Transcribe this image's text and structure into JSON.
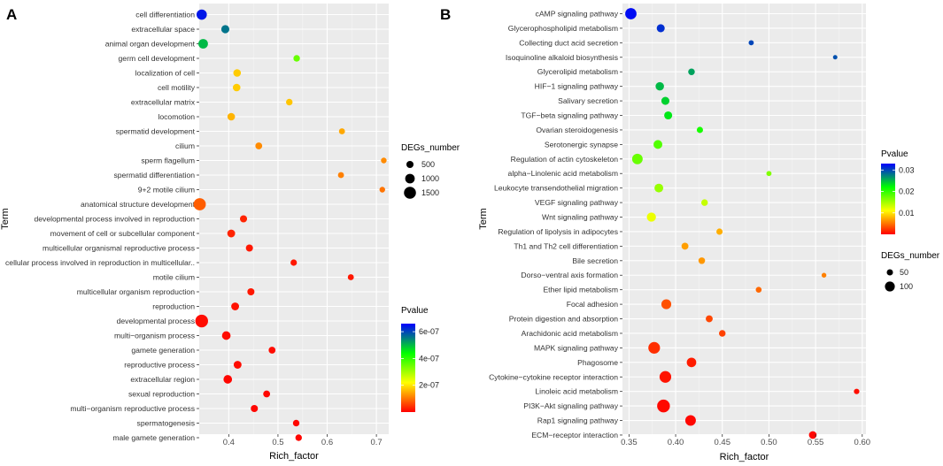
{
  "figure": {
    "panels": [
      {
        "letter": "A"
      },
      {
        "letter": "B"
      }
    ]
  },
  "chart_data": [
    {
      "panel": "A",
      "type": "scatter",
      "xlabel": "Rich_factor",
      "ylabel": "Term",
      "xlim": [
        0.34,
        0.725
      ],
      "xticks": [
        0.4,
        0.5,
        0.6,
        0.7
      ],
      "xtick_labels": [
        "0.4",
        "0.5",
        "0.6",
        "0.7"
      ],
      "grid": true,
      "color_legend": {
        "title": "Pvalue",
        "range": [
          0,
          6.6e-07
        ],
        "ticks": [
          2e-07,
          4e-07,
          6e-07
        ],
        "tick_labels": [
          "2e-07",
          "4e-07",
          "6e-07"
        ],
        "colors": [
          "#ff0000",
          "#ffff00",
          "#00ff00",
          "#0000ff"
        ]
      },
      "size_legend": {
        "title": "DEGs_number",
        "values": [
          500,
          1000,
          1500
        ],
        "labels": [
          "500",
          "1000",
          "1500"
        ]
      },
      "points": [
        {
          "term": "cell differentiation",
          "rich_factor": 0.345,
          "degs": 1150,
          "pvalue": 6.4e-07
        },
        {
          "term": "extracellular space",
          "rich_factor": 0.393,
          "degs": 700,
          "pvalue": 5.6e-07
        },
        {
          "term": "animal organ development",
          "rich_factor": 0.348,
          "degs": 1000,
          "pvalue": 5e-07
        },
        {
          "term": "germ cell development",
          "rich_factor": 0.538,
          "degs": 380,
          "pvalue": 3.5e-07
        },
        {
          "term": "localization of cell",
          "rich_factor": 0.417,
          "degs": 600,
          "pvalue": 1.75e-07
        },
        {
          "term": "cell motility",
          "rich_factor": 0.416,
          "degs": 600,
          "pvalue": 1.75e-07
        },
        {
          "term": "extracellular matrix",
          "rich_factor": 0.523,
          "degs": 380,
          "pvalue": 1.7e-07
        },
        {
          "term": "locomotion",
          "rich_factor": 0.405,
          "degs": 600,
          "pvalue": 1.55e-07
        },
        {
          "term": "spermatid development",
          "rich_factor": 0.63,
          "degs": 280,
          "pvalue": 1.45e-07
        },
        {
          "term": "cilium",
          "rich_factor": 0.461,
          "degs": 450,
          "pvalue": 1.2e-07
        },
        {
          "term": "sperm flagellum",
          "rich_factor": 0.715,
          "degs": 200,
          "pvalue": 1.2e-07
        },
        {
          "term": "spermatid differentiation",
          "rich_factor": 0.628,
          "degs": 280,
          "pvalue": 1.1e-07
        },
        {
          "term": "9+2 motile cilium",
          "rich_factor": 0.712,
          "degs": 200,
          "pvalue": 1e-07
        },
        {
          "term": "anatomical structure development",
          "rich_factor": 0.341,
          "degs": 1550,
          "pvalue": 8e-08
        },
        {
          "term": "developmental process involved in reproduction",
          "rich_factor": 0.43,
          "degs": 500,
          "pvalue": 3e-08
        },
        {
          "term": "movement of cell or subcellular component",
          "rich_factor": 0.405,
          "degs": 650,
          "pvalue": 3e-08
        },
        {
          "term": "multicellular organismal reproductive process",
          "rich_factor": 0.442,
          "degs": 500,
          "pvalue": 2e-08
        },
        {
          "term": "cellular process involved in reproduction in multicellular..",
          "rich_factor": 0.532,
          "degs": 350,
          "pvalue": 2e-08
        },
        {
          "term": "motile cilium",
          "rich_factor": 0.648,
          "degs": 280,
          "pvalue": 2e-08
        },
        {
          "term": "multicellular organism reproduction",
          "rich_factor": 0.445,
          "degs": 500,
          "pvalue": 2e-08
        },
        {
          "term": "reproduction",
          "rich_factor": 0.413,
          "degs": 650,
          "pvalue": 1.5e-08
        },
        {
          "term": "developmental process",
          "rich_factor": 0.345,
          "degs": 1650,
          "pvalue": 1e-08
        },
        {
          "term": "multi−organism process",
          "rich_factor": 0.395,
          "degs": 800,
          "pvalue": 1e-08
        },
        {
          "term": "gamete generation",
          "rich_factor": 0.488,
          "degs": 450,
          "pvalue": 1e-08
        },
        {
          "term": "reproductive process",
          "rich_factor": 0.418,
          "degs": 650,
          "pvalue": 1e-08
        },
        {
          "term": "extracellular region",
          "rich_factor": 0.398,
          "degs": 800,
          "pvalue": 5e-09
        },
        {
          "term": "sexual reproduction",
          "rich_factor": 0.477,
          "degs": 450,
          "pvalue": 5e-09
        },
        {
          "term": "multi−organism reproductive process",
          "rich_factor": 0.452,
          "degs": 500,
          "pvalue": 5e-09
        },
        {
          "term": "spermatogenesis",
          "rich_factor": 0.537,
          "degs": 380,
          "pvalue": 5e-09
        },
        {
          "term": "male gamete generation",
          "rich_factor": 0.542,
          "degs": 380,
          "pvalue": 5e-09
        }
      ]
    },
    {
      "panel": "B",
      "type": "scatter",
      "xlabel": "Rich_factor",
      "ylabel": "Term",
      "xlim": [
        0.343,
        0.604
      ],
      "xticks": [
        0.35,
        0.4,
        0.45,
        0.5,
        0.55,
        0.6
      ],
      "xtick_labels": [
        "0.35",
        "0.40",
        "0.45",
        "0.50",
        "0.55",
        "0.60"
      ],
      "grid": true,
      "color_legend": {
        "title": "Pvalue",
        "range": [
          0,
          0.033
        ],
        "ticks": [
          0.01,
          0.02,
          0.03
        ],
        "tick_labels": [
          "0.01",
          "0.02",
          "0.03"
        ],
        "colors": [
          "#ff0000",
          "#ffff00",
          "#00ff00",
          "#0000ff"
        ]
      },
      "size_legend": {
        "title": "DEGs_number",
        "values": [
          50,
          100
        ],
        "labels": [
          "50",
          "100"
        ]
      },
      "points": [
        {
          "term": "cAMP signaling pathway",
          "rich_factor": 0.352,
          "degs": 120,
          "pvalue": 0.0325
        },
        {
          "term": "Glycerophospholipid metabolism",
          "rich_factor": 0.384,
          "degs": 75,
          "pvalue": 0.031
        },
        {
          "term": "Collecting duct acid secretion",
          "rich_factor": 0.481,
          "degs": 35,
          "pvalue": 0.03
        },
        {
          "term": "Isoquinoline alkaloid biosynthesis",
          "rich_factor": 0.571,
          "degs": 25,
          "pvalue": 0.0295
        },
        {
          "term": "Glycerolipid metabolism",
          "rich_factor": 0.417,
          "degs": 55,
          "pvalue": 0.026
        },
        {
          "term": "HIF−1 signaling pathway",
          "rich_factor": 0.383,
          "degs": 80,
          "pvalue": 0.025
        },
        {
          "term": "Salivary secretion",
          "rich_factor": 0.389,
          "degs": 75,
          "pvalue": 0.024
        },
        {
          "term": "TGF−beta signaling pathway",
          "rich_factor": 0.392,
          "degs": 75,
          "pvalue": 0.023
        },
        {
          "term": "Ovarian steroidogenesis",
          "rich_factor": 0.426,
          "degs": 50,
          "pvalue": 0.021
        },
        {
          "term": "Serotonergic synapse",
          "rich_factor": 0.381,
          "degs": 85,
          "pvalue": 0.0185
        },
        {
          "term": "Regulation of actin cytoskeleton",
          "rich_factor": 0.359,
          "degs": 110,
          "pvalue": 0.0175
        },
        {
          "term": "alpha−Linolenic acid metabolism",
          "rich_factor": 0.5,
          "degs": 35,
          "pvalue": 0.0165
        },
        {
          "term": "Leukocyte transendothelial migration",
          "rich_factor": 0.382,
          "degs": 85,
          "pvalue": 0.0155
        },
        {
          "term": "VEGF signaling pathway",
          "rich_factor": 0.431,
          "degs": 55,
          "pvalue": 0.0135
        },
        {
          "term": "Wnt signaling pathway",
          "rich_factor": 0.374,
          "degs": 90,
          "pvalue": 0.0118
        },
        {
          "term": "Regulation of lipolysis in adipocytes",
          "rich_factor": 0.447,
          "degs": 50,
          "pvalue": 0.0075
        },
        {
          "term": "Th1 and Th2 cell differentiation",
          "rich_factor": 0.41,
          "degs": 60,
          "pvalue": 0.0068
        },
        {
          "term": "Bile secretion",
          "rich_factor": 0.428,
          "degs": 55,
          "pvalue": 0.0065
        },
        {
          "term": "Dorso−ventral axis formation",
          "rich_factor": 0.559,
          "degs": 30,
          "pvalue": 0.0055
        },
        {
          "term": "Ether lipid metabolism",
          "rich_factor": 0.489,
          "degs": 45,
          "pvalue": 0.0045
        },
        {
          "term": "Focal adhesion",
          "rich_factor": 0.39,
          "degs": 100,
          "pvalue": 0.0035
        },
        {
          "term": "Protein digestion and absorption",
          "rich_factor": 0.436,
          "degs": 60,
          "pvalue": 0.003
        },
        {
          "term": "Arachidonic acid metabolism",
          "rich_factor": 0.45,
          "degs": 55,
          "pvalue": 0.0028
        },
        {
          "term": "MAPK signaling pathway",
          "rich_factor": 0.377,
          "degs": 125,
          "pvalue": 0.002
        },
        {
          "term": "Phagosome",
          "rich_factor": 0.417,
          "degs": 95,
          "pvalue": 0.0012
        },
        {
          "term": "Cytokine−cytokine receptor interaction",
          "rich_factor": 0.389,
          "degs": 125,
          "pvalue": 0.0008
        },
        {
          "term": "Linoleic acid metabolism",
          "rich_factor": 0.594,
          "degs": 40,
          "pvalue": 0.0006
        },
        {
          "term": "PI3K−Akt signaling pathway",
          "rich_factor": 0.387,
          "degs": 140,
          "pvalue": 0.0004
        },
        {
          "term": "Rap1 signaling pathway",
          "rich_factor": 0.416,
          "degs": 110,
          "pvalue": 0.0003
        },
        {
          "term": "ECM−receptor interaction",
          "rich_factor": 0.547,
          "degs": 70,
          "pvalue": 0.0002
        }
      ]
    }
  ]
}
